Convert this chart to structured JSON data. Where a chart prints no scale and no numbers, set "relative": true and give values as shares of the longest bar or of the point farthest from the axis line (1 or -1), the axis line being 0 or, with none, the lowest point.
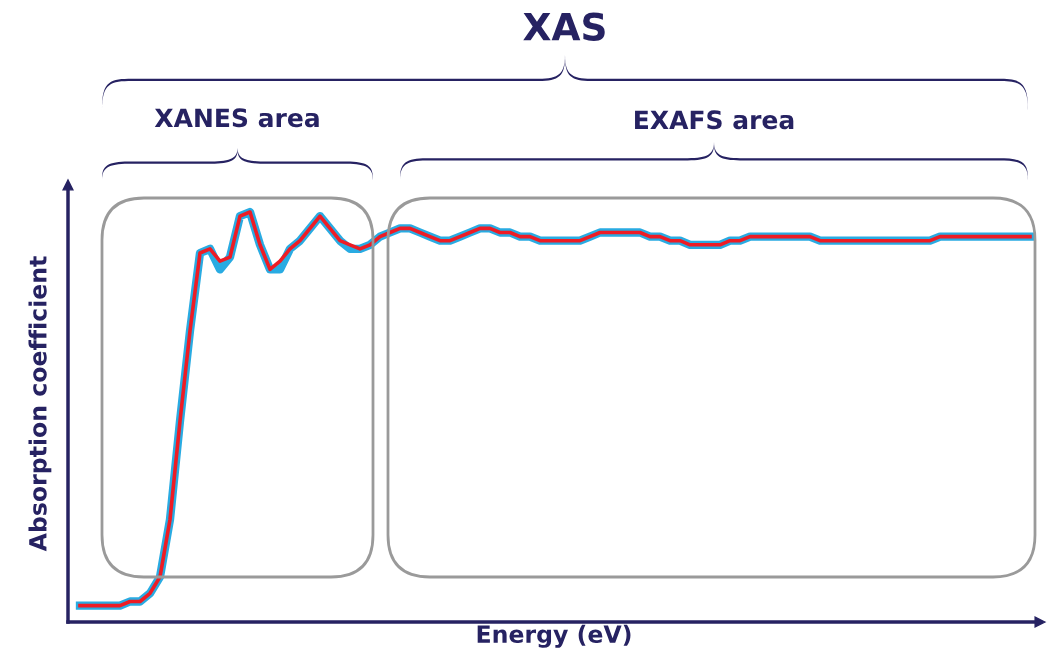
{
  "chart_data": {
    "type": "line",
    "relative": true,
    "xlabel": "Energy (eV)",
    "ylabel": "Absorption coefficient",
    "annotations": [
      "XAS",
      "XANES area",
      "EXAFS area"
    ],
    "categories": [
      null,
      null,
      null,
      null,
      null,
      null,
      null,
      null,
      null,
      null,
      null,
      null,
      null,
      null,
      null,
      null,
      null,
      null,
      null,
      null,
      null,
      null,
      null,
      null,
      null,
      null,
      null,
      null,
      null,
      null,
      null,
      null,
      null,
      null,
      null,
      null,
      null,
      null,
      null,
      null,
      null,
      null,
      null,
      null,
      null,
      null,
      null,
      null,
      null,
      null,
      null,
      null,
      null,
      null,
      null,
      null,
      null,
      null,
      null,
      null,
      null,
      null,
      null,
      null,
      null,
      null,
      null,
      null,
      null,
      null,
      null,
      null,
      null,
      null,
      null,
      null,
      null,
      null,
      null,
      null,
      null,
      null,
      null,
      null,
      null,
      null,
      null,
      null,
      null,
      null,
      null,
      null,
      null,
      null,
      null,
      null
    ],
    "series": [
      {
        "color": "#29abe2",
        "values": [
          0.04,
          0.04,
          0.04,
          0.04,
          0.04,
          0.05,
          0.05,
          0.07,
          0.11,
          0.25,
          0.49,
          0.71,
          0.9,
          0.91,
          0.86,
          0.89,
          0.99,
          1.0,
          0.92,
          0.86,
          0.86,
          0.91,
          0.93,
          0.96,
          0.99,
          0.96,
          0.93,
          0.91,
          0.91,
          0.92,
          0.94,
          0.95,
          0.96,
          0.96,
          0.95,
          0.94,
          0.93,
          0.93,
          0.94,
          0.95,
          0.96,
          0.96,
          0.95,
          0.95,
          0.94,
          0.94,
          0.93,
          0.93,
          0.93,
          0.93,
          0.93,
          0.94,
          0.95,
          0.95,
          0.95,
          0.95,
          0.95,
          0.94,
          0.94,
          0.93,
          0.93,
          0.92,
          0.92,
          0.92,
          0.92,
          0.93,
          0.93,
          0.94,
          0.94,
          0.94,
          0.94,
          0.94,
          0.94,
          0.94,
          0.93,
          0.93,
          0.93,
          0.93,
          0.93,
          0.93,
          0.93,
          0.93,
          0.93,
          0.93,
          0.93,
          0.93,
          0.94,
          0.94,
          0.94,
          0.94,
          0.94,
          0.94,
          0.94,
          0.94,
          0.94,
          0.94
        ]
      },
      {
        "color": "#ee1c25",
        "values": [
          0.04,
          0.04,
          0.04,
          0.04,
          0.04,
          0.05,
          0.05,
          0.07,
          0.11,
          0.25,
          0.49,
          0.71,
          0.9,
          0.91,
          0.88,
          0.89,
          0.99,
          1.0,
          0.92,
          0.86,
          0.88,
          0.91,
          0.93,
          0.96,
          0.99,
          0.96,
          0.93,
          0.92,
          0.91,
          0.92,
          0.94,
          0.95,
          0.96,
          0.96,
          0.95,
          0.94,
          0.93,
          0.93,
          0.94,
          0.95,
          0.96,
          0.96,
          0.95,
          0.95,
          0.94,
          0.94,
          0.93,
          0.93,
          0.93,
          0.93,
          0.93,
          0.94,
          0.95,
          0.95,
          0.95,
          0.95,
          0.95,
          0.94,
          0.94,
          0.93,
          0.93,
          0.92,
          0.92,
          0.92,
          0.92,
          0.93,
          0.93,
          0.94,
          0.94,
          0.94,
          0.94,
          0.94,
          0.94,
          0.94,
          0.93,
          0.93,
          0.93,
          0.93,
          0.93,
          0.93,
          0.93,
          0.93,
          0.93,
          0.93,
          0.93,
          0.93,
          0.94,
          0.94,
          0.94,
          0.94,
          0.94,
          0.94,
          0.94,
          0.94,
          0.94,
          0.94
        ]
      }
    ]
  }
}
